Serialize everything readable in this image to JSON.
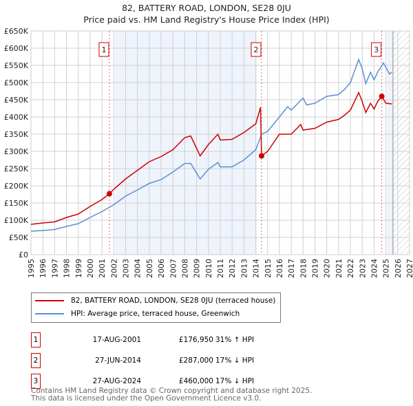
{
  "chart_data": {
    "type": "line",
    "title": "82, BATTERY ROAD, LONDON, SE28 0JU",
    "subtitle": "Price paid vs. HM Land Registry's House Price Index (HPI)",
    "xlim": [
      1995,
      2027
    ],
    "ylim": [
      0,
      650000
    ],
    "x_ticks": [
      "1995",
      "1996",
      "1997",
      "1998",
      "1999",
      "2000",
      "2001",
      "2002",
      "2003",
      "2004",
      "2005",
      "2006",
      "2007",
      "2008",
      "2009",
      "2010",
      "2011",
      "2012",
      "2013",
      "2014",
      "2015",
      "2016",
      "2017",
      "2018",
      "2019",
      "2020",
      "2021",
      "2022",
      "2023",
      "2024",
      "2025",
      "2026",
      "2027"
    ],
    "y_ticks": [
      "£0",
      "£50K",
      "£100K",
      "£150K",
      "£200K",
      "£250K",
      "£300K",
      "£350K",
      "£400K",
      "£450K",
      "£500K",
      "£550K",
      "£600K",
      "£650K"
    ],
    "grid": true,
    "series": [
      {
        "name": "82, BATTERY ROAD, LONDON, SE28 0JU (terraced house)",
        "color": "#cc0000",
        "x": [
          1995,
          1996,
          1997,
          1998,
          1999,
          2000,
          2001,
          2001.63,
          2002,
          2003,
          2004,
          2005,
          2006,
          2007,
          2008,
          2008.5,
          2009.3,
          2010,
          2010.8,
          2011,
          2012,
          2013,
          2014,
          2014.4,
          2014.49,
          2015,
          2016,
          2017,
          2017.8,
          2018,
          2019,
          2020,
          2021,
          2021.5,
          2022,
          2022.7,
          2023,
          2023.3,
          2023.7,
          2024,
          2024.3,
          2024.65,
          2025,
          2025.5
        ],
        "y": [
          88000,
          92000,
          95000,
          108000,
          118000,
          140000,
          160000,
          176950,
          190000,
          220000,
          245000,
          270000,
          285000,
          305000,
          340000,
          345000,
          287000,
          320000,
          350000,
          333000,
          335000,
          355000,
          380000,
          428000,
          287000,
          300000,
          350000,
          350000,
          378000,
          362000,
          367000,
          385000,
          393000,
          405000,
          420000,
          471000,
          445000,
          413000,
          440000,
          423000,
          445000,
          460000,
          440000,
          438000
        ]
      },
      {
        "name": "HPI: Average price, terraced house, Greenwich",
        "color": "#5b8fd0",
        "x": [
          1995,
          1996,
          1997,
          1998,
          1999,
          2000,
          2001,
          2002,
          2003,
          2004,
          2005,
          2006,
          2007,
          2008,
          2008.5,
          2009.3,
          2010,
          2010.8,
          2011,
          2012,
          2013,
          2014,
          2014.5,
          2015,
          2016,
          2016.7,
          2017,
          2018,
          2018.3,
          2019,
          2020,
          2021,
          2021.5,
          2022,
          2022.7,
          2023,
          2023.3,
          2023.7,
          2024,
          2024.3,
          2024.8,
          2025.3,
          2025.5
        ],
        "y": [
          68000,
          70000,
          73000,
          82000,
          90000,
          108000,
          125000,
          145000,
          170000,
          188000,
          207000,
          218000,
          240000,
          265000,
          265000,
          220000,
          248000,
          268000,
          255000,
          255000,
          275000,
          305000,
          350000,
          358000,
          400000,
          430000,
          420000,
          455000,
          435000,
          440000,
          460000,
          465000,
          480000,
          500000,
          567000,
          540000,
          497000,
          530000,
          508000,
          530000,
          557000,
          525000,
          530000
        ]
      }
    ],
    "sales": [
      {
        "label": "1",
        "x": 2001.63,
        "y": 176950,
        "date": "17-AUG-2001",
        "price": "£176,950",
        "hpi": "31% ↑ HPI"
      },
      {
        "label": "2",
        "x": 2014.49,
        "y": 287000,
        "date": "27-JUN-2014",
        "price": "£287,000",
        "hpi": "17% ↓ HPI"
      },
      {
        "label": "3",
        "x": 2024.65,
        "y": 460000,
        "date": "27-AUG-2024",
        "price": "£460,000",
        "hpi": "17% ↓ HPI"
      }
    ],
    "shaded_ranges": [
      [
        2002.1,
        2014.1
      ],
      [
        2025.1,
        2025.6
      ]
    ],
    "forecast_hatch_from": 2025.6,
    "legend": "below"
  },
  "footer": [
    "Contains HM Land Registry data © Crown copyright and database right 2025.",
    "This data is licensed under the Open Government Licence v3.0."
  ]
}
